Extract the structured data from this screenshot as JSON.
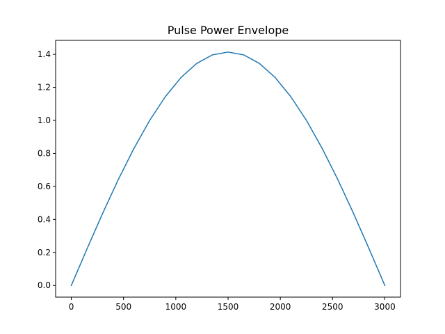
{
  "chart_data": {
    "type": "line",
    "title": "Pulse Power Envelope",
    "xlabel": "",
    "ylabel": "",
    "xlim": [
      -150,
      3150
    ],
    "ylim": [
      -0.0707,
      1.4849
    ],
    "xticks": [
      0,
      500,
      1000,
      1500,
      2000,
      2500,
      3000
    ],
    "xtick_labels": [
      "0",
      "500",
      "1000",
      "1500",
      "2000",
      "2500",
      "3000"
    ],
    "yticks": [
      0.0,
      0.2,
      0.4,
      0.6,
      0.8,
      1.0,
      1.2,
      1.4
    ],
    "ytick_labels": [
      "0.0",
      "0.2",
      "0.4",
      "0.6",
      "0.8",
      "1.0",
      "1.2",
      "1.4"
    ],
    "grid": false,
    "series": [
      {
        "color": "#1f77b4",
        "x": [
          0,
          150,
          300,
          450,
          600,
          750,
          900,
          1050,
          1200,
          1350,
          1500,
          1650,
          1800,
          1950,
          2100,
          2250,
          2400,
          2550,
          2700,
          2850,
          3000
        ],
        "y": [
          0.0,
          0.221,
          0.437,
          0.642,
          0.831,
          1.0,
          1.144,
          1.26,
          1.345,
          1.397,
          1.414,
          1.397,
          1.345,
          1.26,
          1.144,
          1.0,
          0.831,
          0.642,
          0.437,
          0.221,
          0.0
        ]
      }
    ]
  }
}
